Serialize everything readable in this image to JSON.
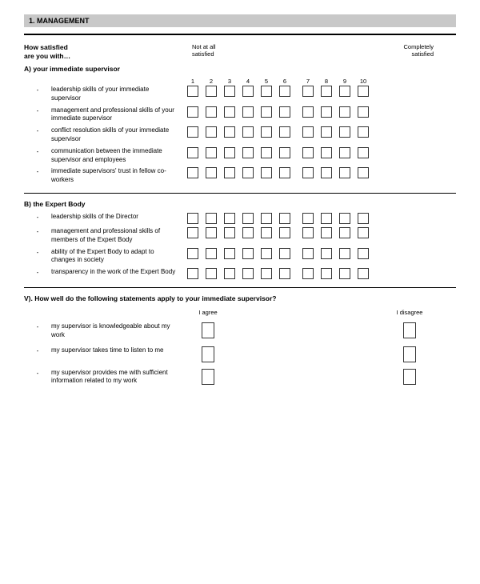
{
  "header": {
    "title": "1. MANAGEMENT"
  },
  "intro": {
    "line1": "How satisfied",
    "line2": "are you with…",
    "anchor_low": "Not at all\nsatisfied",
    "anchor_high": "Completely\nsatisfied"
  },
  "scale_numbers": [
    "1",
    "2",
    "3",
    "4",
    "5",
    "6",
    "7",
    "8",
    "9",
    "10"
  ],
  "sectionA": {
    "title": "A) your immediate supervisor",
    "items": [
      "leadership skills of your immediate supervisor",
      "management and professional skills of your immediate supervisor",
      "conflict resolution skills of your immediate supervisor",
      "communication between the immediate supervisor and employees",
      "immediate supervisors' trust in fellow co-workers"
    ]
  },
  "sectionB": {
    "title": "B) the Expert Body",
    "items": [
      "leadership skills of the Director",
      "management and professional skills of members of the Expert Body",
      "ability of the Expert Body to adapt to changes in society",
      "transparency in the work of the Expert Body"
    ]
  },
  "sectionV": {
    "title": "V). How well do the following statements apply to your immediate supervisor?",
    "anchor_agree": "I agree",
    "anchor_disagree": "I disagree",
    "items": [
      "my supervisor is knowledgeable about my work",
      "my supervisor takes time to listen to me",
      "my supervisor provides me with sufficient information related to my work"
    ]
  },
  "colors": {
    "header_bg": "#c8c8c8",
    "text": "#000000",
    "box_border": "#333333",
    "page_bg": "#ffffff"
  }
}
